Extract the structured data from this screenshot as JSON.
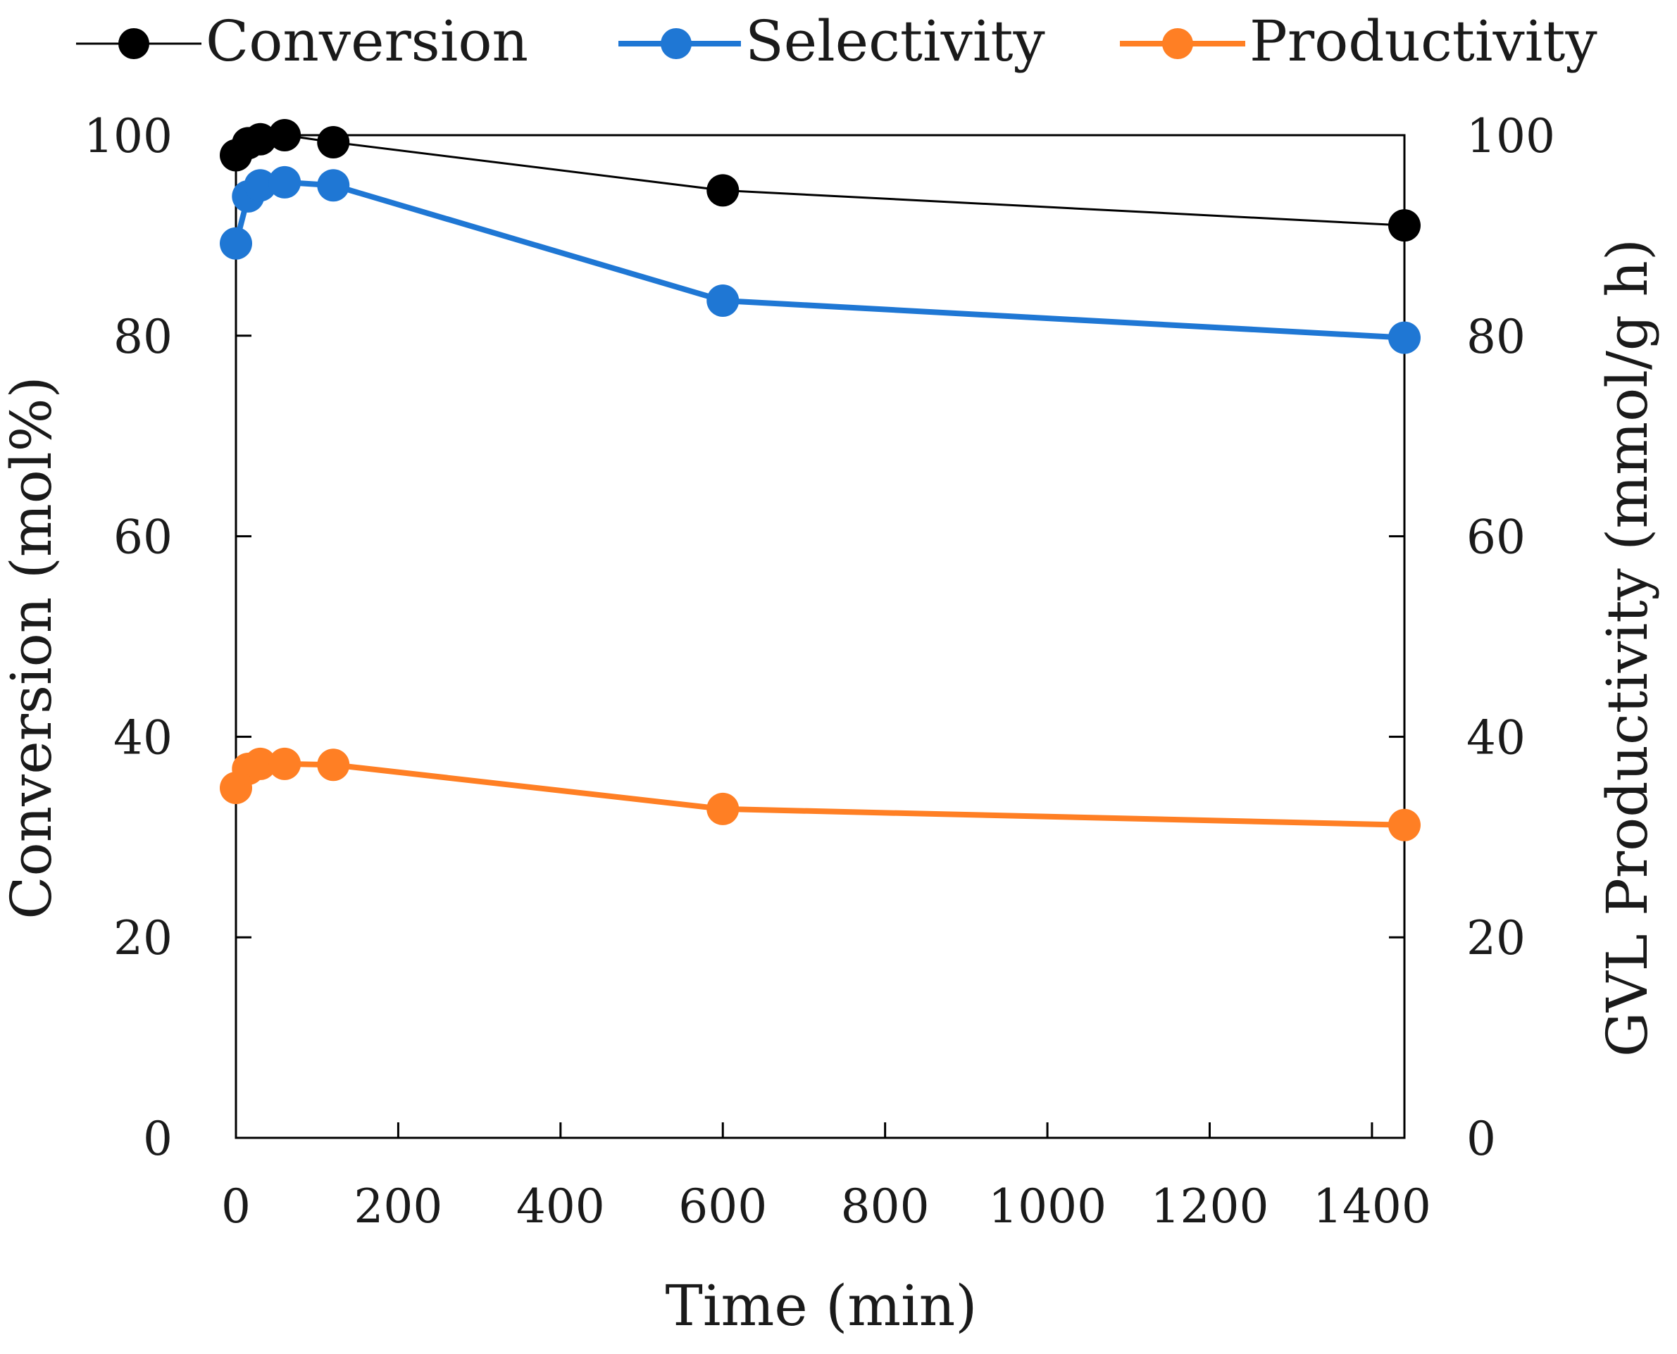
{
  "chart_data": {
    "type": "line",
    "xlabel": "Time (min)",
    "ylabel_left": "Conversion (mol%)",
    "ylabel_right": "GVL Productivity (mmol/g h)",
    "xlim": [
      0,
      1440
    ],
    "ylim_left": [
      0,
      100
    ],
    "ylim_right": [
      0,
      100
    ],
    "x_ticks": [
      "0",
      "200",
      "400",
      "600",
      "800",
      "1000",
      "1200",
      "1400"
    ],
    "y_ticks_left": [
      "0",
      "20",
      "40",
      "60",
      "80",
      "100"
    ],
    "y_ticks_right": [
      "0",
      "20",
      "40",
      "60",
      "80",
      "100"
    ],
    "grid": false,
    "legend_position": "top",
    "series": [
      {
        "name": "Conversion",
        "axis": "left",
        "color": "#000000",
        "x": [
          0,
          15,
          30,
          60,
          120,
          600,
          1440
        ],
        "y": [
          98.0,
          99.2,
          99.6,
          100.0,
          99.3,
          94.5,
          91.0
        ]
      },
      {
        "name": "Selectivity",
        "axis": "left",
        "color": "#1f77d4",
        "x": [
          0,
          15,
          30,
          60,
          120,
          600,
          1440
        ],
        "y": [
          89.2,
          93.9,
          95.0,
          95.3,
          95.0,
          83.5,
          79.8
        ]
      },
      {
        "name": "Productivity",
        "axis": "right",
        "color": "#ff7f24",
        "x": [
          0,
          15,
          30,
          60,
          120,
          600,
          1440
        ],
        "y": [
          34.9,
          36.8,
          37.3,
          37.3,
          37.2,
          32.8,
          31.2
        ]
      }
    ]
  }
}
